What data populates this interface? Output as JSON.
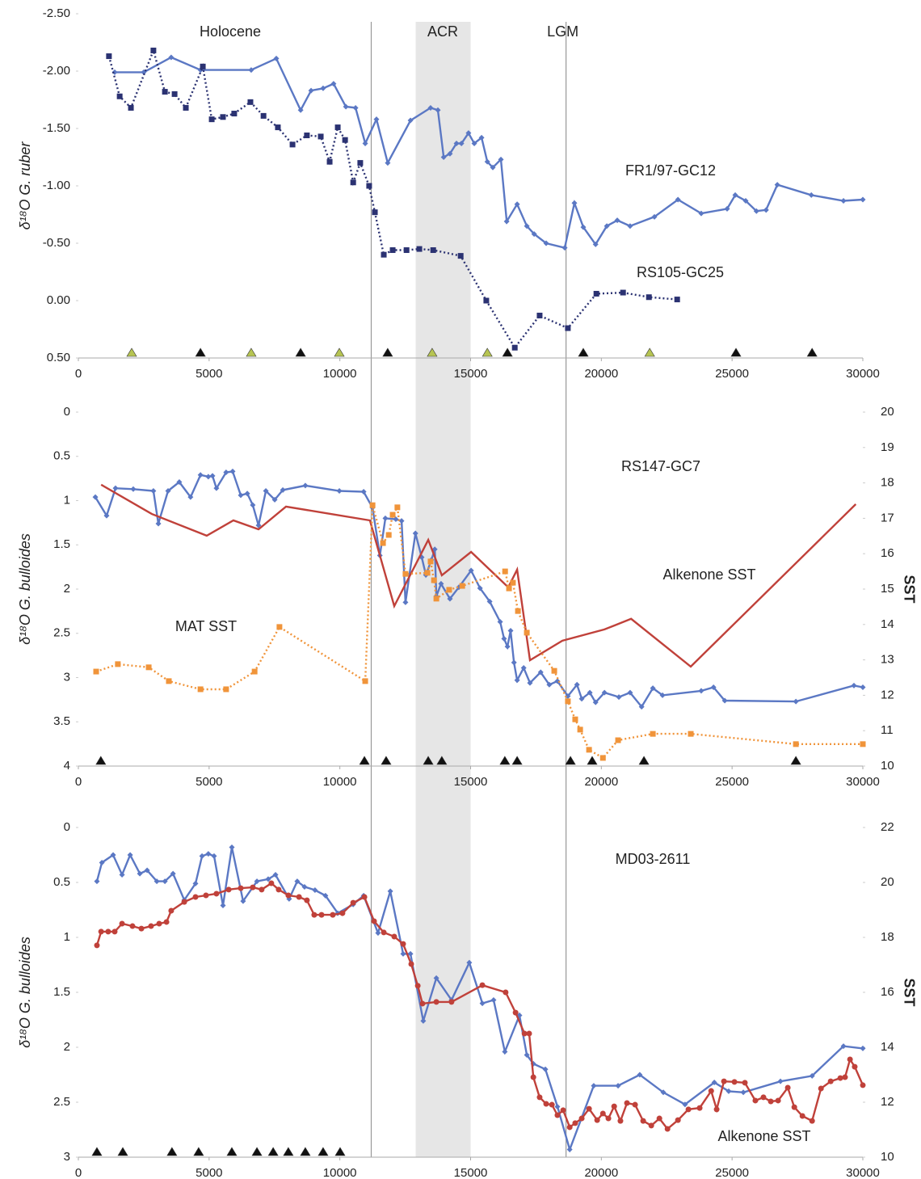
{
  "chart_data": [
    {
      "type": "line",
      "ylabel": "δ¹⁸O G. ruber",
      "holocene_label": "Holocene",
      "acr": {
        "label": "ACR",
        "x": [
          12900,
          15000
        ]
      },
      "boundaries": [
        {
          "x": 11200
        },
        {
          "x": 18650,
          "label": "LGM"
        }
      ],
      "xlim": [
        0,
        30000
      ],
      "xticks": [
        0,
        5000,
        10000,
        15000,
        20000,
        25000,
        30000
      ],
      "ylim": [
        -2.5,
        0.5
      ],
      "y_inverted": true,
      "yticks": [
        {
          "value": -2.5,
          "label": "-2.50"
        },
        {
          "value": -2,
          "label": "-2.00"
        },
        {
          "value": -1.5,
          "label": "-1.50"
        },
        {
          "value": -1,
          "label": "-1.00"
        },
        {
          "value": -0.5,
          "label": "-0.50"
        },
        {
          "value": 0,
          "label": "0.00"
        },
        {
          "value": 0.5,
          "label": "0.50"
        }
      ],
      "series": [
        {
          "name": "FR1/97-GC12",
          "color": "#5b78c4",
          "marker": "diamond",
          "dash": "solid",
          "x": [
            1390,
            2500,
            3550,
            4670,
            6610,
            7570,
            8500,
            8900,
            9360,
            9760,
            10230,
            10600,
            10970,
            11400,
            11830,
            12700,
            13470,
            13750,
            13970,
            14210,
            14460,
            14650,
            14920,
            15140,
            15420,
            15640,
            15850,
            16160,
            16380,
            16780,
            17150,
            17430,
            17890,
            18600,
            18970,
            19310,
            19780,
            20210,
            20610,
            21100,
            22030,
            22930,
            23820,
            24810,
            25120,
            25520,
            25930,
            26300,
            26730,
            28030,
            29260,
            30000
          ],
          "values": [
            -1.99,
            -1.99,
            -2.12,
            -2.01,
            -2.01,
            -2.11,
            -1.66,
            -1.83,
            -1.85,
            -1.89,
            -1.69,
            -1.68,
            -1.37,
            -1.58,
            -1.2,
            -1.57,
            -1.68,
            -1.66,
            -1.25,
            -1.28,
            -1.37,
            -1.37,
            -1.46,
            -1.37,
            -1.42,
            -1.21,
            -1.16,
            -1.23,
            -0.69,
            -0.84,
            -0.65,
            -0.58,
            -0.5,
            -0.46,
            -0.85,
            -0.64,
            -0.49,
            -0.65,
            -0.7,
            -0.65,
            -0.73,
            -0.88,
            -0.76,
            -0.8,
            -0.92,
            -0.87,
            -0.78,
            -0.79,
            -1.01,
            -0.92,
            -0.87,
            -0.88
          ]
        },
        {
          "name": "RS105-GC25",
          "color": "#2b3272",
          "marker": "square",
          "dash": "dotted",
          "x": [
            1170,
            1580,
            2010,
            2870,
            3310,
            3680,
            4110,
            4760,
            5100,
            5530,
            5960,
            6580,
            7080,
            7630,
            8190,
            8740,
            9270,
            9610,
            9920,
            10200,
            10510,
            10780,
            11120,
            11340,
            11680,
            12020,
            12550,
            13040,
            13570,
            14620,
            15600,
            16690,
            17640,
            18720,
            19810,
            20830,
            21820,
            22900
          ],
          "values": [
            -2.13,
            -1.78,
            -1.68,
            -2.18,
            -1.82,
            -1.8,
            -1.68,
            -2.04,
            -1.58,
            -1.6,
            -1.63,
            -1.73,
            -1.61,
            -1.51,
            -1.36,
            -1.44,
            -1.43,
            -1.21,
            -1.51,
            -1.4,
            -1.03,
            -1.2,
            -1.0,
            -0.77,
            -0.4,
            -0.44,
            -0.44,
            -0.45,
            -0.44,
            -0.39,
            0.0,
            0.41,
            0.13,
            0.24,
            -0.06,
            -0.07,
            -0.03,
            -0.01
          ]
        }
      ],
      "age_markers": {
        "x": [
          2040,
          4670,
          6610,
          8500,
          9980,
          11830,
          13530,
          15640,
          16410,
          19310,
          21850,
          25150,
          28060
        ],
        "colors": [
          "#b6c452",
          "#111111",
          "#b6c452",
          "#111111",
          "#b6c452",
          "#111111",
          "#b6c452",
          "#b6c452",
          "#111111",
          "#111111",
          "#b6c452",
          "#111111",
          "#111111"
        ]
      }
    },
    {
      "type": "line",
      "title": "RS147-GC7",
      "ylabel": "δ¹⁸O G. bulloides",
      "y2label": "SST",
      "xlim": [
        0,
        30000
      ],
      "xticks": [
        0,
        5000,
        10000,
        15000,
        20000,
        25000,
        30000
      ],
      "ylim": [
        0,
        4
      ],
      "y_inverted": true,
      "yticks": [
        0,
        0.5,
        1,
        1.5,
        2,
        2.5,
        3,
        3.5,
        4
      ],
      "y2lim": [
        10,
        20
      ],
      "y2ticks": [
        10,
        11,
        12,
        13,
        14,
        15,
        16,
        17,
        18,
        19,
        20
      ],
      "series": [
        {
          "color": "#5b78c4",
          "marker": "diamond",
          "dash": "solid",
          "x": [
            650,
            1080,
            1420,
            2100,
            2870,
            3060,
            3430,
            3860,
            4290,
            4670,
            4970,
            5130,
            5280,
            5650,
            5900,
            6210,
            6460,
            6670,
            6890,
            7170,
            7510,
            7820,
            8680,
            9980,
            10910,
            11250,
            11530,
            11740,
            12140,
            12360,
            12510,
            12890,
            13130,
            13290,
            13500,
            13630,
            13690,
            13870,
            14210,
            14550,
            15020,
            15360,
            15730,
            16130,
            16280,
            16410,
            16530,
            16660,
            16780,
            17030,
            17270,
            17680,
            18010,
            18320,
            18720,
            19070,
            19250,
            19560,
            19780,
            20120,
            20670,
            21100,
            21540,
            21970,
            22340,
            23820,
            24290,
            24720,
            27440,
            29660,
            30000
          ],
          "values": [
            0.96,
            1.17,
            0.86,
            0.87,
            0.89,
            1.26,
            0.89,
            0.79,
            0.96,
            0.71,
            0.73,
            0.72,
            0.86,
            0.68,
            0.67,
            0.94,
            0.92,
            1.05,
            1.28,
            0.89,
            0.99,
            0.88,
            0.83,
            0.89,
            0.9,
            1.08,
            1.62,
            1.2,
            1.21,
            1.23,
            2.15,
            1.37,
            1.64,
            1.84,
            1.67,
            1.55,
            2.08,
            1.94,
            2.11,
            1.98,
            1.79,
            1.99,
            2.14,
            2.37,
            2.56,
            2.65,
            2.47,
            2.83,
            3.03,
            2.89,
            3.06,
            2.94,
            3.08,
            3.04,
            3.21,
            3.08,
            3.24,
            3.17,
            3.28,
            3.17,
            3.22,
            3.17,
            3.33,
            3.12,
            3.2,
            3.15,
            3.11,
            3.26,
            3.27,
            3.09,
            3.11
          ]
        },
        {
          "name": "Alkenone SST",
          "color": "#c0413a",
          "marker": "none",
          "dash": "solid",
          "axis": "y2",
          "x": [
            870,
            2810,
            4910,
            5930,
            6890,
            7940,
            11150,
            12080,
            13380,
            13900,
            15020,
            16440,
            16780,
            17270,
            18510,
            20120,
            21140,
            23420,
            29730
          ],
          "values": [
            17.95,
            17.12,
            16.51,
            16.94,
            16.69,
            17.33,
            16.94,
            14.52,
            16.39,
            15.39,
            16.05,
            15.05,
            15.55,
            12.99,
            13.54,
            13.86,
            14.16,
            12.81,
            17.4
          ]
        },
        {
          "name": "MAT SST",
          "color": "#f0943a",
          "marker": "square",
          "dash": "dotted",
          "axis": "y2",
          "x": [
            680,
            1510,
            2690,
            3460,
            4670,
            5650,
            6740,
            7690,
            10970,
            11250,
            11650,
            11870,
            12020,
            12200,
            12510,
            13350,
            13470,
            13600,
            13690,
            14180,
            14680,
            16320,
            16470,
            16620,
            16810,
            17150,
            18200,
            18720,
            19000,
            19190,
            19530,
            20060,
            20640,
            21970,
            23420,
            27440,
            30000
          ],
          "values": [
            12.67,
            12.88,
            12.79,
            12.4,
            12.17,
            12.17,
            12.67,
            13.93,
            12.4,
            17.37,
            16.3,
            16.53,
            17.1,
            17.31,
            15.43,
            15.46,
            15.78,
            15.25,
            14.73,
            14.98,
            15.09,
            15.5,
            15.02,
            15.18,
            14.38,
            13.77,
            12.69,
            11.83,
            11.32,
            11.03,
            10.46,
            10.23,
            10.73,
            10.91,
            10.91,
            10.62,
            10.62
          ]
        }
      ],
      "age_markers": {
        "x": [
          860,
          10940,
          11770,
          13380,
          13900,
          16310,
          16780,
          18820,
          19650,
          21630,
          27440
        ],
        "colors": [
          "#111111",
          "#111111",
          "#111111",
          "#111111",
          "#111111",
          "#111111",
          "#111111",
          "#111111",
          "#111111",
          "#111111",
          "#111111"
        ]
      }
    },
    {
      "type": "line",
      "title": "MD03-2611",
      "ylabel": "δ¹⁸O G. bulloides",
      "y2label": "SST",
      "xlim": [
        0,
        30000
      ],
      "xticks": [
        0,
        5000,
        10000,
        15000,
        20000,
        25000,
        30000
      ],
      "ylim": [
        0,
        3
      ],
      "y_inverted": true,
      "yticks": [
        0,
        0.5,
        1,
        1.5,
        2,
        2.5,
        3
      ],
      "y2lim": [
        10,
        22
      ],
      "y2ticks": [
        10,
        12,
        14,
        16,
        18,
        20,
        22
      ],
      "series": [
        {
          "color": "#5b78c4",
          "marker": "diamond",
          "dash": "solid",
          "x": [
            710,
            900,
            1330,
            1670,
            1980,
            2350,
            2630,
            3000,
            3310,
            3620,
            4050,
            4480,
            4730,
            4970,
            5190,
            5530,
            5870,
            6300,
            6830,
            7260,
            7540,
            8060,
            8370,
            8650,
            9050,
            9450,
            9920,
            10510,
            10910,
            11460,
            11930,
            12420,
            12700,
            13190,
            13690,
            14270,
            14950,
            15450,
            15880,
            16310,
            16870,
            17150,
            17400,
            17860,
            18320,
            18790,
            19710,
            20640,
            21470,
            22370,
            23200,
            24320,
            24870,
            25430,
            26850,
            28060,
            29260,
            30000
          ],
          "values": [
            0.49,
            0.32,
            0.25,
            0.43,
            0.25,
            0.42,
            0.39,
            0.49,
            0.49,
            0.42,
            0.66,
            0.51,
            0.26,
            0.24,
            0.26,
            0.71,
            0.18,
            0.67,
            0.49,
            0.47,
            0.43,
            0.65,
            0.49,
            0.54,
            0.57,
            0.62,
            0.78,
            0.7,
            0.62,
            0.96,
            0.58,
            1.15,
            1.15,
            1.76,
            1.37,
            1.57,
            1.23,
            1.6,
            1.57,
            2.04,
            1.71,
            2.07,
            2.15,
            2.2,
            2.54,
            2.93,
            2.35,
            2.35,
            2.25,
            2.41,
            2.52,
            2.32,
            2.4,
            2.41,
            2.31,
            2.26,
            1.99,
            2.01
          ]
        },
        {
          "name": "Alkenone SST",
          "color": "#c0413a",
          "marker": "circle",
          "dash": "solid",
          "axis": "y2",
          "x": [
            710,
            870,
            1140,
            1390,
            1670,
            2070,
            2410,
            2780,
            3090,
            3370,
            3550,
            4050,
            4480,
            4880,
            5280,
            5750,
            6210,
            6670,
            7010,
            7380,
            7660,
            8030,
            8440,
            8740,
            9020,
            9300,
            9730,
            10100,
            10510,
            10940,
            11310,
            11680,
            12080,
            12420,
            12730,
            12980,
            13160,
            13690,
            14270,
            15450,
            16340,
            16720,
            17060,
            17240,
            17400,
            17640,
            17890,
            18110,
            18320,
            18540,
            18790,
            19000,
            19250,
            19530,
            19840,
            20060,
            20270,
            20490,
            20730,
            20980,
            21290,
            21600,
            21910,
            22220,
            22530,
            22930,
            23330,
            23760,
            24200,
            24410,
            24690,
            25090,
            25490,
            25890,
            26200,
            26480,
            26760,
            27130,
            27380,
            27690,
            28060,
            28400,
            28770,
            29140,
            29320,
            29510,
            29690,
            30000
          ],
          "values": [
            17.71,
            18.21,
            18.21,
            18.21,
            18.5,
            18.41,
            18.32,
            18.41,
            18.5,
            18.56,
            18.97,
            19.29,
            19.47,
            19.53,
            19.59,
            19.74,
            19.79,
            19.82,
            19.74,
            19.97,
            19.74,
            19.53,
            19.47,
            19.35,
            18.82,
            18.82,
            18.82,
            18.88,
            19.26,
            19.47,
            18.59,
            18.18,
            18.03,
            17.76,
            17.03,
            16.24,
            15.59,
            15.65,
            15.65,
            16.26,
            16,
            15.26,
            14.5,
            14.5,
            12.91,
            12.18,
            11.94,
            11.91,
            11.53,
            11.71,
            11.09,
            11.24,
            11.41,
            11.76,
            11.35,
            11.59,
            11.41,
            11.85,
            11.32,
            11.97,
            11.91,
            11.32,
            11.15,
            11.41,
            11.03,
            11.35,
            11.74,
            11.79,
            12.41,
            11.74,
            12.76,
            12.74,
            12.71,
            12.06,
            12.18,
            12.03,
            12.06,
            12.53,
            11.82,
            11.5,
            11.32,
            12.5,
            12.76,
            12.88,
            12.91,
            13.56,
            13.29,
            12.62
          ]
        }
      ],
      "age_markers": {
        "x": [
          710,
          1700,
          3580,
          4600,
          5870,
          6830,
          7450,
          8030,
          8680,
          9360,
          10010
        ],
        "colors": [
          "#111111",
          "#111111",
          "#111111",
          "#111111",
          "#111111",
          "#111111",
          "#111111",
          "#111111",
          "#111111",
          "#111111",
          "#111111"
        ]
      }
    }
  ]
}
